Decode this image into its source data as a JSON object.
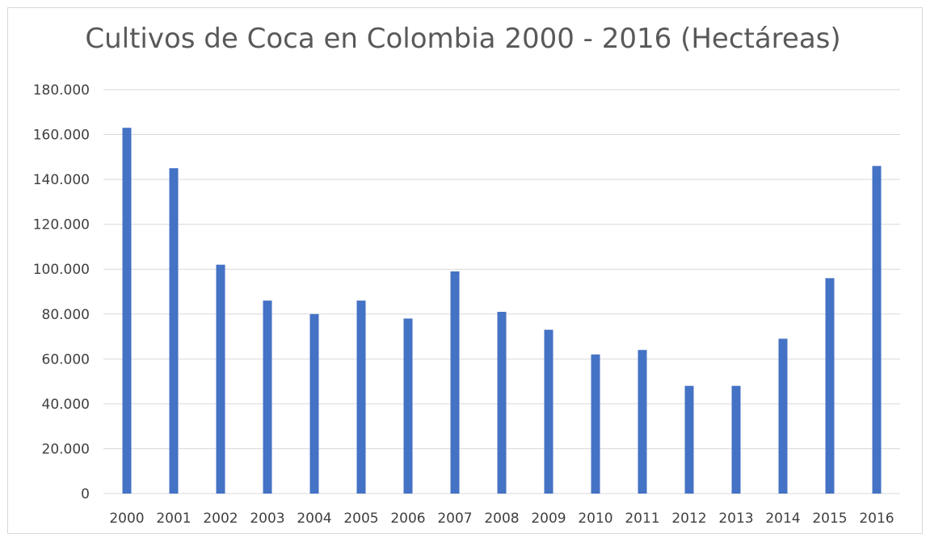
{
  "chart_data": {
    "type": "bar",
    "title": "Cultivos de Coca en Colombia 2000 - 2016 (Hectáreas)",
    "xlabel": "",
    "ylabel": "",
    "categories": [
      "2000",
      "2001",
      "2002",
      "2003",
      "2004",
      "2005",
      "2006",
      "2007",
      "2008",
      "2009",
      "2010",
      "2011",
      "2012",
      "2013",
      "2014",
      "2015",
      "2016"
    ],
    "values": [
      163000,
      145000,
      102000,
      86000,
      80000,
      86000,
      78000,
      99000,
      81000,
      73000,
      62000,
      64000,
      48000,
      48000,
      69000,
      96000,
      146000
    ],
    "ylim": [
      0,
      180000
    ],
    "yticks": [
      0,
      20000,
      40000,
      60000,
      80000,
      100000,
      120000,
      140000,
      160000,
      180000
    ],
    "ytick_labels": [
      "0",
      "20.000",
      "40.000",
      "60.000",
      "80.000",
      "100.000",
      "120.000",
      "140.000",
      "160.000",
      "180.000"
    ],
    "grid": true,
    "legend": "none",
    "bar_color": "#4472c4",
    "grid_color": "#d9d9d9"
  }
}
